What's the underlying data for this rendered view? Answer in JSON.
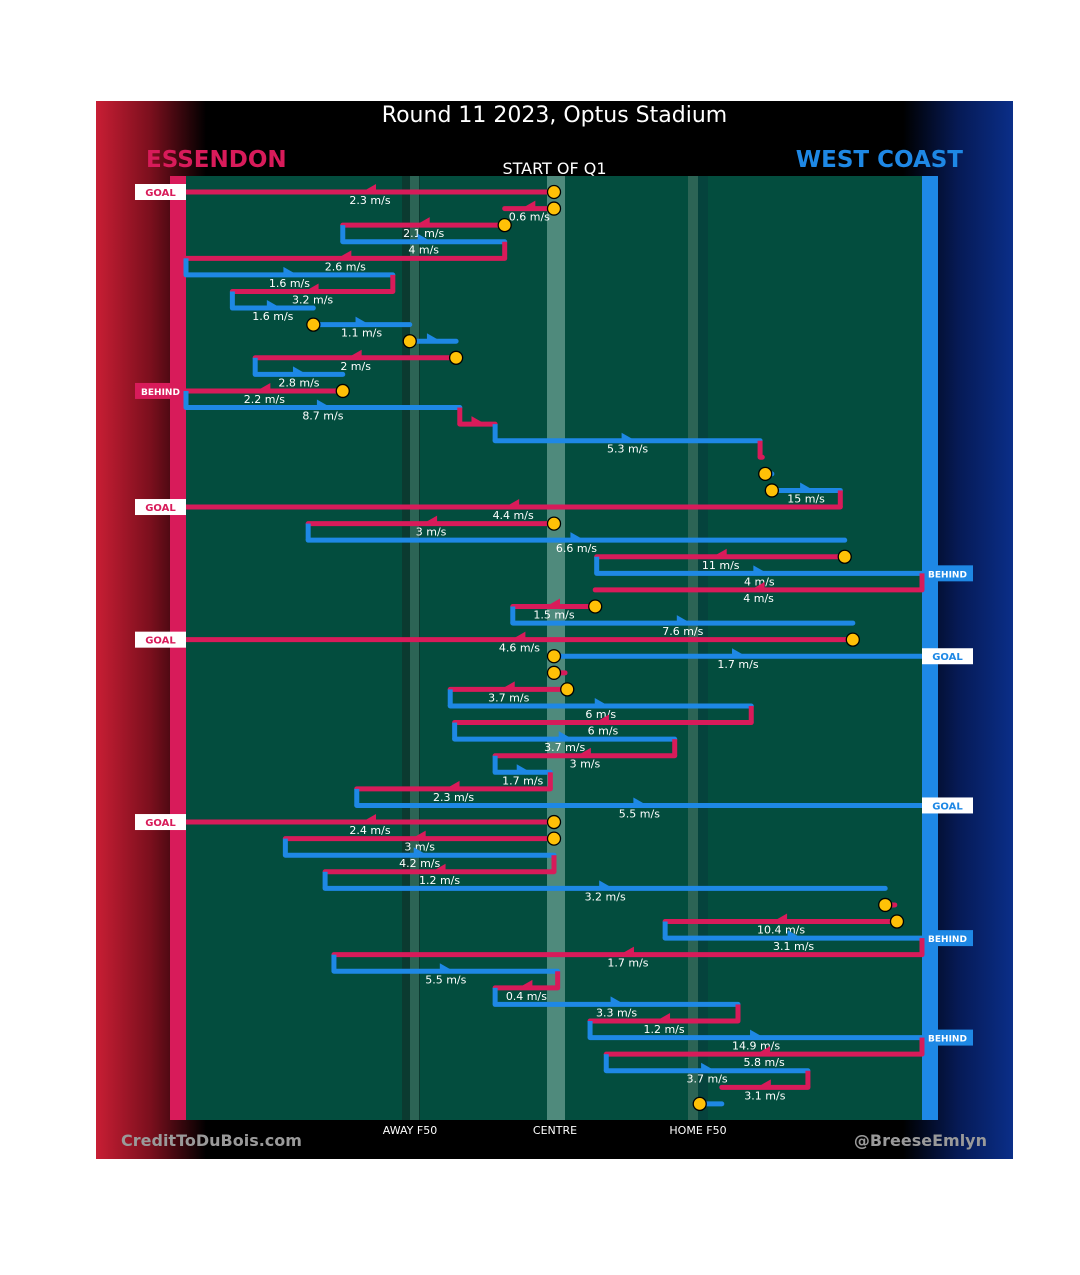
{
  "title": "Round 11 2023, Optus Stadium",
  "period": "START OF Q1",
  "teams": {
    "home": "ESSENDON",
    "away": "WEST COAST",
    "home_color": "#d81b5a",
    "away_color": "#1e88e5"
  },
  "credits": {
    "left": "CreditToDuBois.com",
    "right": "@BreeseEmlyn"
  },
  "chart_data": {
    "type": "line",
    "description_units": "x = field position, 0 = Essendon goal line, 100 = West Coast goal line",
    "x_axis": {
      "range": [
        0,
        100
      ],
      "ticks": [
        {
          "value": 30.4,
          "label": "AWAY F50"
        },
        {
          "value": 50,
          "label": "CENTRE"
        },
        {
          "value": 69.8,
          "label": "HOME F50"
        }
      ]
    },
    "result_labels": {
      "goal": "GOAL",
      "behind": "BEHIND"
    },
    "chains": [
      {
        "team": "home",
        "from": 50,
        "to": 0,
        "speed": "2.3 m/s",
        "stoppage": true,
        "result": "goal"
      },
      {
        "team": "home",
        "from": 50,
        "to": 43.3,
        "speed": "0.6 m/s",
        "stoppage": true
      },
      {
        "team": "home",
        "from": 43.3,
        "to": 21.3,
        "speed": "2.1 m/s",
        "stoppage": true
      },
      {
        "team": "away",
        "from": 21.3,
        "to": 43.3,
        "speed": "4 m/s"
      },
      {
        "team": "home",
        "from": 43.3,
        "to": 0,
        "speed": "2.6 m/s"
      },
      {
        "team": "away",
        "from": 0,
        "to": 28.1,
        "speed": "1.6 m/s"
      },
      {
        "team": "home",
        "from": 28.1,
        "to": 6.3,
        "speed": "3.2 m/s"
      },
      {
        "team": "away",
        "from": 6.3,
        "to": 17.3,
        "speed": "1.6 m/s"
      },
      {
        "team": "away",
        "from": 17.3,
        "to": 30.4,
        "speed": "1.1 m/s",
        "stoppage": true
      },
      {
        "team": "away",
        "from": 30.4,
        "to": 36.7,
        "speed": "",
        "stoppage": true
      },
      {
        "team": "home",
        "from": 36.7,
        "to": 9.4,
        "speed": "2 m/s",
        "stoppage": true
      },
      {
        "team": "away",
        "from": 9.4,
        "to": 21.3,
        "speed": "2.8 m/s"
      },
      {
        "team": "home",
        "from": 21.3,
        "to": 0,
        "speed": "2.2 m/s",
        "stoppage": true,
        "result": "behind"
      },
      {
        "team": "away",
        "from": 0,
        "to": 37.2,
        "speed": "8.7 m/s"
      },
      {
        "team": "home",
        "from": 37.2,
        "to": 42.0,
        "speed": ""
      },
      {
        "team": "away",
        "from": 42.0,
        "to": 78.0,
        "speed": "5.3 m/s"
      },
      {
        "team": "home",
        "from": 78.0,
        "to": 78.3,
        "speed": ""
      },
      {
        "team": "away",
        "from": 78.7,
        "to": 79.6,
        "speed": "",
        "stoppage": true
      },
      {
        "team": "away",
        "from": 79.6,
        "to": 88.9,
        "speed": "15 m/s",
        "stoppage": true
      },
      {
        "team": "home",
        "from": 88.9,
        "to": 0,
        "speed": "4.4 m/s",
        "result": "goal"
      },
      {
        "team": "home",
        "from": 50,
        "to": 16.6,
        "speed": "3 m/s",
        "stoppage": true
      },
      {
        "team": "away",
        "from": 16.6,
        "to": 89.5,
        "speed": "6.6 m/s"
      },
      {
        "team": "home",
        "from": 89.5,
        "to": 55.8,
        "speed": "11 m/s",
        "stoppage": true
      },
      {
        "team": "away",
        "from": 55.8,
        "to": 100,
        "speed": "4 m/s",
        "result": "behind"
      },
      {
        "team": "home",
        "from": 100,
        "to": 55.6,
        "speed": "4 m/s"
      },
      {
        "team": "home",
        "from": 55.6,
        "to": 44.4,
        "speed": "1.5 m/s",
        "stoppage": true
      },
      {
        "team": "away",
        "from": 44.4,
        "to": 90.6,
        "speed": "7.6 m/s"
      },
      {
        "team": "home",
        "from": 90.6,
        "to": 0,
        "speed": "4.6 m/s",
        "stoppage": true,
        "result": "goal"
      },
      {
        "team": "away",
        "from": 50,
        "to": 100,
        "speed": "1.7 m/s",
        "stoppage": true,
        "result": "goal"
      },
      {
        "team": "home",
        "from": 50,
        "to": 51.5,
        "speed": "",
        "stoppage": true
      },
      {
        "team": "home",
        "from": 51.8,
        "to": 35.9,
        "speed": "3.7 m/s",
        "stoppage": true
      },
      {
        "team": "away",
        "from": 35.9,
        "to": 76.8,
        "speed": "6 m/s"
      },
      {
        "team": "home",
        "from": 76.8,
        "to": 36.5,
        "speed": "6 m/s"
      },
      {
        "team": "away",
        "from": 36.5,
        "to": 66.4,
        "speed": "3.7 m/s"
      },
      {
        "team": "home",
        "from": 66.4,
        "to": 42.0,
        "speed": "3 m/s"
      },
      {
        "team": "away",
        "from": 42.0,
        "to": 49.5,
        "speed": "1.7 m/s"
      },
      {
        "team": "home",
        "from": 49.5,
        "to": 23.2,
        "speed": "2.3 m/s"
      },
      {
        "team": "away",
        "from": 23.2,
        "to": 100,
        "speed": "5.5 m/s",
        "result": "goal"
      },
      {
        "team": "home",
        "from": 50,
        "to": 0,
        "speed": "2.4 m/s",
        "stoppage": true,
        "result": "goal"
      },
      {
        "team": "home",
        "from": 50,
        "to": 13.5,
        "speed": "3 m/s",
        "stoppage": true
      },
      {
        "team": "away",
        "from": 13.5,
        "to": 50,
        "speed": "4.2 m/s"
      },
      {
        "team": "home",
        "from": 50,
        "to": 18.9,
        "speed": "1.2 m/s"
      },
      {
        "team": "away",
        "from": 18.9,
        "to": 95.0,
        "speed": "3.2 m/s"
      },
      {
        "team": "home",
        "from": 95.0,
        "to": 96.3,
        "speed": "",
        "stoppage": true
      },
      {
        "team": "home",
        "from": 96.6,
        "to": 65.1,
        "speed": "10.4 m/s",
        "stoppage": true
      },
      {
        "team": "away",
        "from": 65.1,
        "to": 100,
        "speed": "3.1 m/s",
        "result": "behind"
      },
      {
        "team": "home",
        "from": 100,
        "to": 20.1,
        "speed": "1.7 m/s"
      },
      {
        "team": "away",
        "from": 20.1,
        "to": 50.5,
        "speed": "5.5 m/s"
      },
      {
        "team": "home",
        "from": 50.5,
        "to": 42.0,
        "speed": "0.4 m/s"
      },
      {
        "team": "away",
        "from": 42.0,
        "to": 75.0,
        "speed": "3.3 m/s"
      },
      {
        "team": "home",
        "from": 75.0,
        "to": 54.9,
        "speed": "1.2 m/s"
      },
      {
        "team": "away",
        "from": 54.9,
        "to": 100,
        "speed": "14.9 m/s",
        "result": "behind"
      },
      {
        "team": "home",
        "from": 100,
        "to": 57.1,
        "speed": "5.8 m/s"
      },
      {
        "team": "away",
        "from": 57.1,
        "to": 84.5,
        "speed": "3.7 m/s"
      },
      {
        "team": "home",
        "from": 84.5,
        "to": 72.8,
        "speed": "3.1 m/s"
      },
      {
        "team": "away",
        "from": 69.8,
        "to": 72.8,
        "speed": "",
        "stoppage": true
      }
    ]
  }
}
